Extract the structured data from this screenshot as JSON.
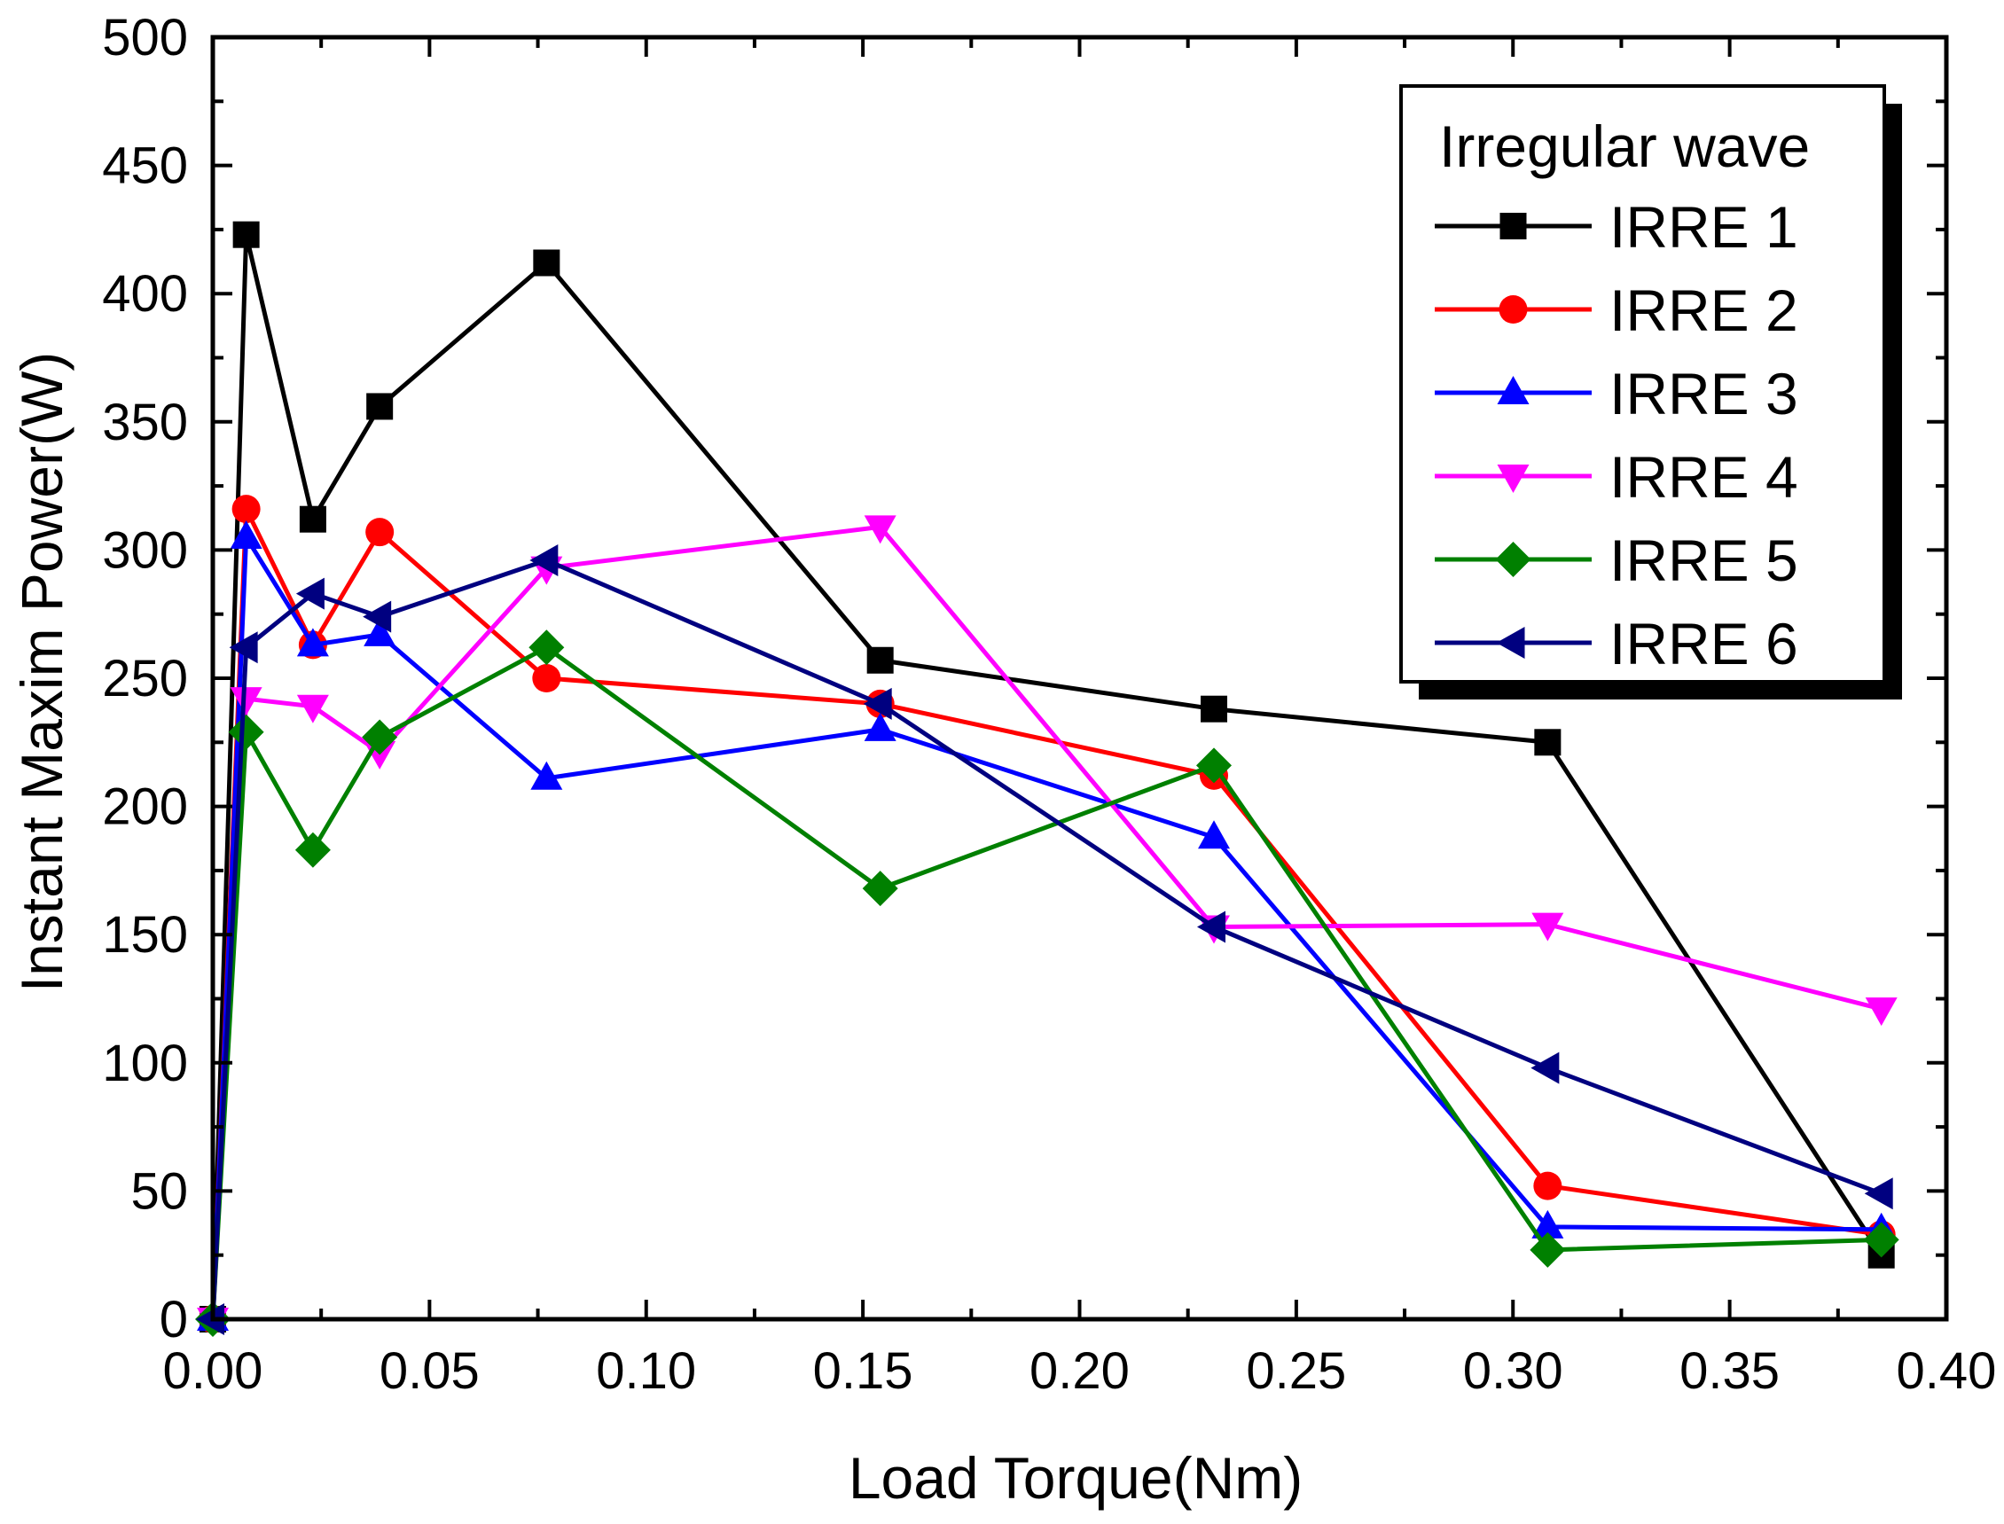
{
  "chart_data": {
    "type": "line",
    "title": "",
    "xlabel": "Load Torque(Nm)",
    "ylabel": "Instant Maxim Power(W)",
    "xlim": [
      0,
      0.4
    ],
    "ylim": [
      0,
      500
    ],
    "xticks": [
      0,
      0.05,
      0.1,
      0.15,
      0.2,
      0.25,
      0.3,
      0.35,
      0.4
    ],
    "xtick_labels": [
      "0.00",
      "0.05",
      "0.10",
      "0.15",
      "0.20",
      "0.25",
      "0.30",
      "0.35",
      "0.40"
    ],
    "yticks": [
      0,
      50,
      100,
      150,
      200,
      250,
      300,
      350,
      400,
      450,
      500
    ],
    "ytick_labels": [
      "0",
      "50",
      "100",
      "150",
      "200",
      "250",
      "300",
      "350",
      "400",
      "450",
      "500"
    ],
    "grid": false,
    "legend": {
      "title": "Irregular wave",
      "position": "top-right"
    },
    "x": [
      0,
      0.0077,
      0.0231,
      0.0385,
      0.077,
      0.154,
      0.231,
      0.308,
      0.385
    ],
    "series": [
      {
        "name": "IRRE 1",
        "color": "#000000",
        "marker": "square",
        "values": [
          0,
          423,
          312,
          356,
          412,
          257,
          238,
          225,
          25
        ]
      },
      {
        "name": "IRRE 2",
        "color": "#ff0000",
        "marker": "circle",
        "values": [
          0,
          316,
          263,
          307,
          250,
          240,
          212,
          52,
          33
        ]
      },
      {
        "name": "IRRE 3",
        "color": "#0000ff",
        "marker": "triangle-up",
        "values": [
          0,
          305,
          263,
          267,
          211,
          230,
          188,
          36,
          35
        ]
      },
      {
        "name": "IRRE 4",
        "color": "#ff00ff",
        "marker": "triangle-down",
        "values": [
          0,
          242,
          239,
          221,
          293,
          309,
          153,
          154,
          121
        ]
      },
      {
        "name": "IRRE 5",
        "color": "#008000",
        "marker": "diamond",
        "values": [
          0,
          229,
          183,
          227,
          262,
          168,
          216,
          27,
          31
        ]
      },
      {
        "name": "IRRE 6",
        "color": "#000080",
        "marker": "triangle-left",
        "values": [
          0,
          262,
          283,
          274,
          296,
          240,
          153,
          98,
          49
        ]
      }
    ]
  }
}
